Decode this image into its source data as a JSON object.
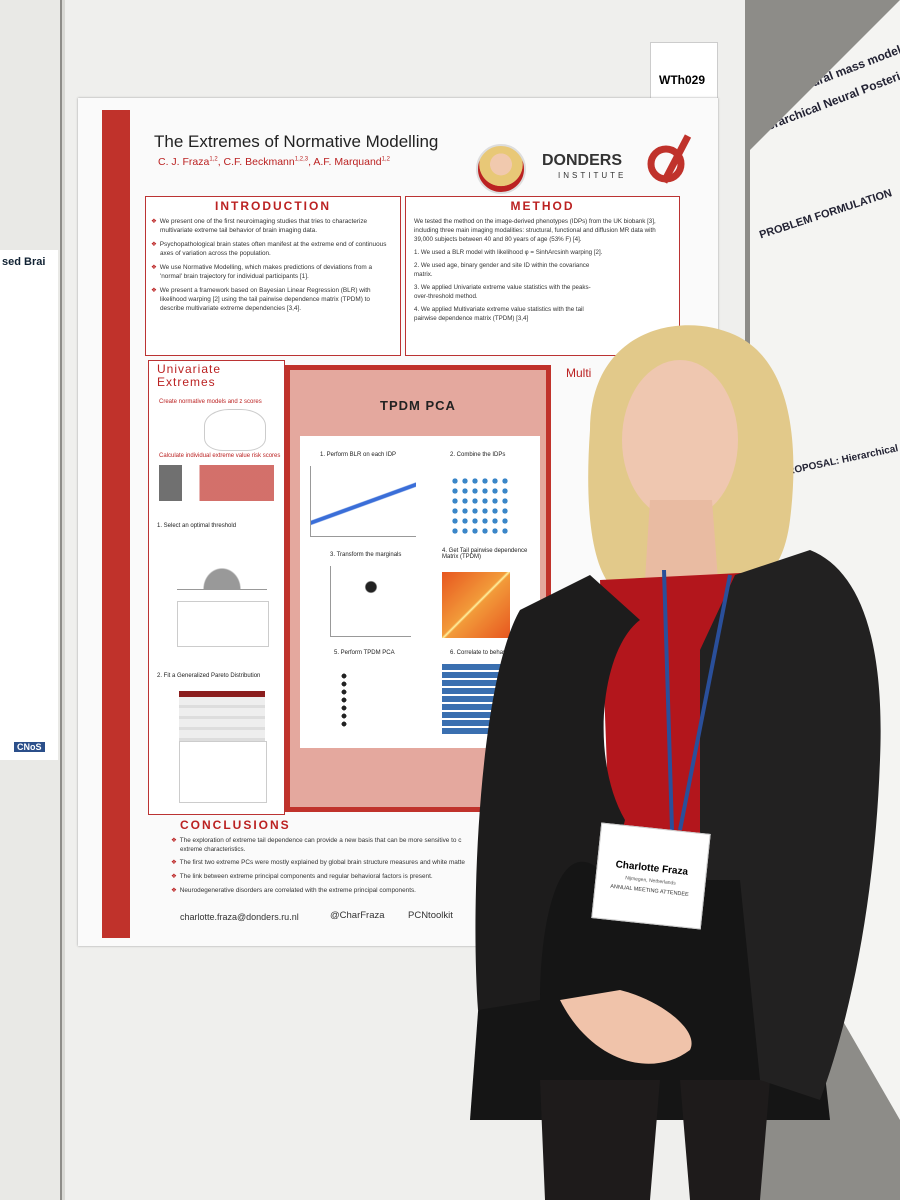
{
  "left_poster": {
    "title": "sed Brai",
    "logo": "CNoS"
  },
  "board_label": "WTh029",
  "poster": {
    "title": "The Extremes of Normative Modelling",
    "authors": [
      {
        "name": "C. J. Fraza",
        "sup": "1,2"
      },
      {
        "name": "C.F. Beckmann",
        "sup": "1,2,3"
      },
      {
        "name": "A.F. Marquand",
        "sup": "1,2"
      }
    ],
    "logo": {
      "name": "DONDERS",
      "sub": "INSTITUTE"
    },
    "introduction": {
      "heading": "INTRODUCTION",
      "bullets": [
        "We present one of the first neuroimaging studies that tries to characterize multivariate extreme tail behavior of brain imaging data.",
        "Psychopathological brain states often manifest at the extreme end of continuous axes of variation across the population.",
        "We use Normative Modelling, which makes predictions of deviations from a 'normal' brain trajectory for individual participants [1].",
        "We present a framework based on Bayesian Linear Regression (BLR) with likelihood warping [2] using the tail pairwise dependence matrix (TPDM) to describe multivariate extreme dependencies [3,4]."
      ]
    },
    "method": {
      "heading": "METHOD",
      "intro": "We tested the method on the image-derived phenotypes (IDPs) from the UK biobank [3], including three main imaging modalities: structural, functional and diffusion MR data with 39,000 subjects between 40 and 80 years of age (53% F) [4].",
      "steps": [
        "1. We used a BLR model with likelihood φ = SinhArcsinh warping [2].",
        "2. We used age, binary gender and site ID within the covariance matrix.",
        "3. We applied Univariate extreme value statistics with the peaks-over-threshold method.",
        "4. We applied Multivariate extreme value statistics with the tail pairwise dependence matrix (TPDM) [3,4]"
      ]
    },
    "univariate": {
      "heading": "Univariate Extremes",
      "items": [
        "Create normative models and z scores",
        "Calculate individual extreme value risk scores",
        "1. Select an optimal threshold",
        "2. Fit a Generalized Pareto Distribution"
      ]
    },
    "tpdm": {
      "heading": "TPDM PCA",
      "steps": [
        "1. Perform BLR on each IDP",
        "2. Combine the IDPs",
        "3. Transform the marginals",
        "4. Get Tail pairwise dependence Matrix (TPDM)",
        "5. Perform TPDM PCA",
        "6. Correlate to behav"
      ]
    },
    "multivariate_heading": "Multi",
    "conclusions": {
      "heading": "CONCLUSIONS",
      "bullets": [
        "The exploration of extreme tail dependence can provide a new basis that can be more sensitive to c",
        "The first two extreme PCs were mostly explained by global brain structure measures and white matte",
        "The link between extreme principal components and regular behavioral factors is present.",
        "Neurodegenerative disorders are correlated with the extreme principal components."
      ],
      "continuation": "extreme characteristics."
    },
    "footer": {
      "email": "charlotte.fraza@donders.ru.nl",
      "twitter": "@CharFraza",
      "github": "PCNtoolkit"
    }
  },
  "badge": {
    "name": "Charlotte Fraza",
    "location": "Nijmegen, Netherlands",
    "role": "ANNUAL MEETING ATTENDEE"
  },
  "right_poster": {
    "title_1": "Inferring neural mass models para",
    "title_2": "Hierarchical Neural Posterior Est",
    "section_1": "PROBLEM FORMULATION",
    "section_2": "PROPOSAL: Hierarchical Modelling"
  }
}
